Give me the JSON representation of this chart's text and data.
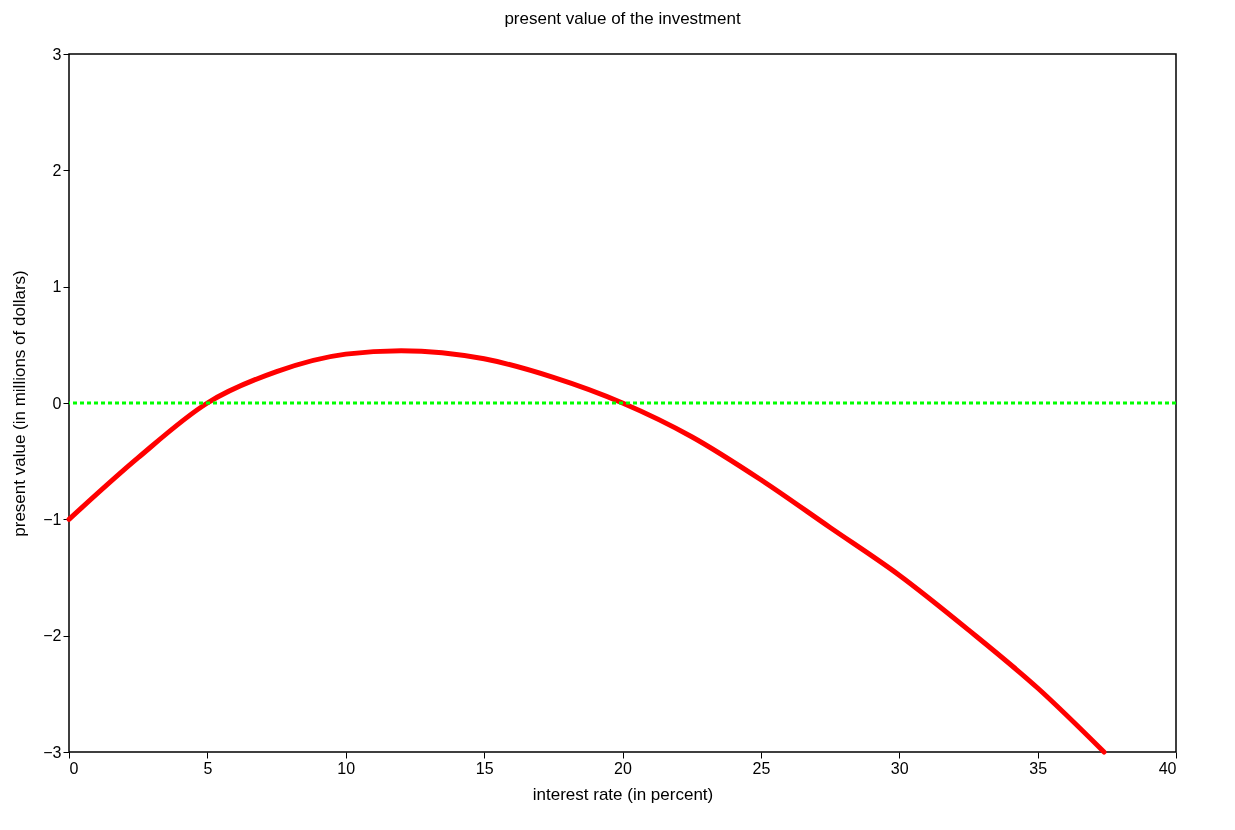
{
  "chart_data": {
    "type": "line",
    "title": "present value of the investment",
    "xlabel": "interest rate (in percent)",
    "ylabel": "present value (in millions of dollars)",
    "x": [
      0,
      2.5,
      5,
      7.5,
      10,
      12,
      15,
      17.5,
      20,
      22.5,
      25,
      27.5,
      30,
      32.5,
      35,
      37.4
    ],
    "series": [
      {
        "color": "#ff0000",
        "values": [
          -1,
          -0.47,
          0,
          0.27,
          0.42,
          0.45,
          0.38,
          0.22,
          0,
          -0.29,
          -0.66,
          -1.07,
          -1.48,
          -1.95,
          -2.45,
          -3
        ]
      }
    ],
    "xlim": [
      0,
      40
    ],
    "ylim": [
      -3,
      3
    ],
    "xticks": [
      0,
      5,
      10,
      15,
      20,
      25,
      30,
      35,
      40
    ],
    "yticks": [
      -3,
      -2,
      -1,
      0,
      1,
      2,
      3
    ],
    "ref_lines": [
      {
        "axis": "y",
        "value": 0,
        "color": "#00ff00",
        "line_style": "dotted"
      }
    ],
    "grid": false,
    "marker": "none",
    "line_style": "solid"
  }
}
